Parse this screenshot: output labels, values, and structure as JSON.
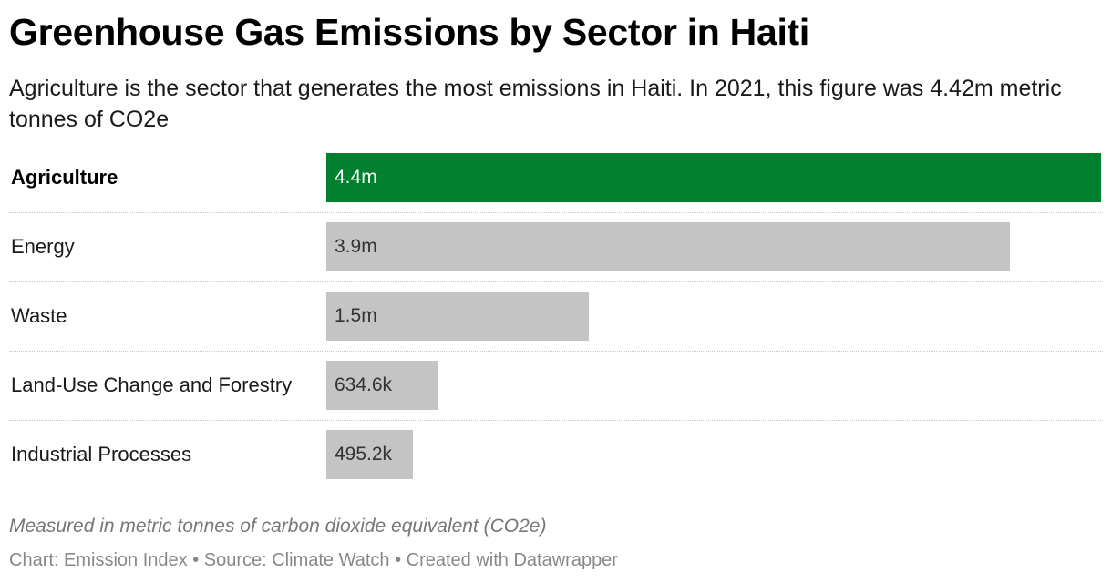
{
  "header": {
    "title": "Greenhouse Gas Emissions by Sector in Haiti",
    "subtitle": "Agriculture is the sector that generates the most emissions in Haiti. In 2021, this figure was 4.42m metric tonnes of CO2e"
  },
  "chart_data": {
    "type": "bar",
    "orientation": "horizontal",
    "categories": [
      "Agriculture",
      "Energy",
      "Waste",
      "Land-Use Change and Forestry",
      "Industrial Processes"
    ],
    "values": [
      4420000,
      3900000,
      1500000,
      634600,
      495200
    ],
    "value_labels": [
      "4.4m",
      "3.9m",
      "1.5m",
      "634.6k",
      "495.2k"
    ],
    "highlighted": "Agriculture",
    "colors": {
      "highlight": "#00802f",
      "default": "#c4c4c4"
    },
    "xlim": [
      0,
      4420000
    ],
    "grid": false,
    "legend": "none"
  },
  "notes": {
    "measure": "Measured in metric tonnes of carbon dioxide equivalent (CO2e)",
    "footer": "Chart: Emission Index • Source: Climate Watch • Created with Datawrapper"
  }
}
